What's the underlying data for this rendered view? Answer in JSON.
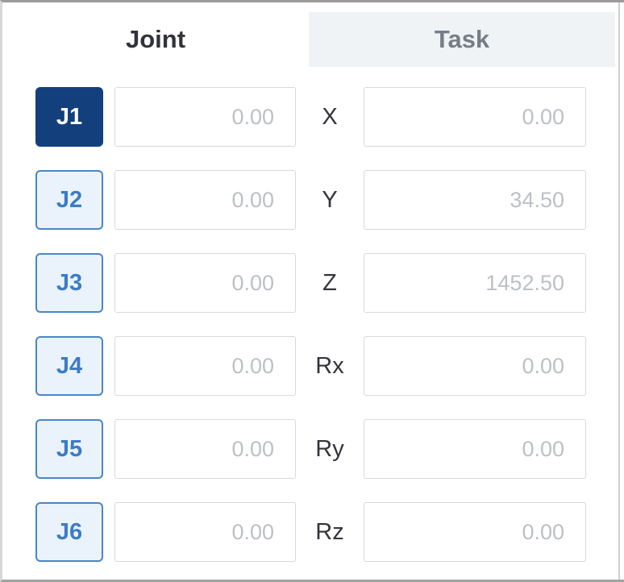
{
  "tabs": {
    "joint": {
      "label": "Joint",
      "active": true
    },
    "task": {
      "label": "Task",
      "active": false
    }
  },
  "joint": {
    "rows": [
      {
        "label": "J1",
        "value": "0.00",
        "selected": true
      },
      {
        "label": "J2",
        "value": "0.00",
        "selected": false
      },
      {
        "label": "J3",
        "value": "0.00",
        "selected": false
      },
      {
        "label": "J4",
        "value": "0.00",
        "selected": false
      },
      {
        "label": "J5",
        "value": "0.00",
        "selected": false
      },
      {
        "label": "J6",
        "value": "0.00",
        "selected": false
      }
    ]
  },
  "task": {
    "rows": [
      {
        "label": "X",
        "value": "0.00"
      },
      {
        "label": "Y",
        "value": "34.50"
      },
      {
        "label": "Z",
        "value": "1452.50"
      },
      {
        "label": "Rx",
        "value": "0.00"
      },
      {
        "label": "Ry",
        "value": "0.00"
      },
      {
        "label": "Rz",
        "value": "0.00"
      }
    ]
  },
  "colors": {
    "selected_joint_bg": "#133f7d",
    "joint_button_bg": "#eaf3fc",
    "joint_button_border": "#4a86c8",
    "joint_button_text": "#3c7cc7",
    "inactive_tab_bg": "#f0f3f6",
    "active_tab_text": "#32333a",
    "inactive_tab_text": "#767d86",
    "field_value_text": "#bdc1c6",
    "frame_border": "#9b9b9b"
  }
}
